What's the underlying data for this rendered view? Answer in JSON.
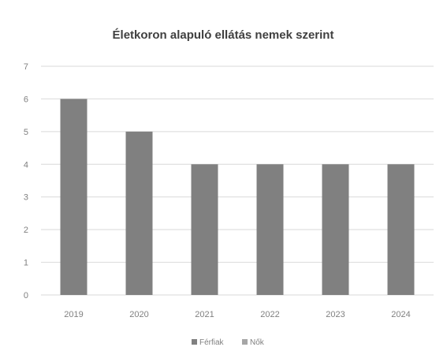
{
  "chart_data": {
    "type": "bar",
    "title": "Életkoron alapuló ellátás nemek szerint",
    "xlabel": "",
    "ylabel": "",
    "categories": [
      "2019",
      "2020",
      "2021",
      "2022",
      "2023",
      "2024"
    ],
    "series": [
      {
        "name": "Férfiak",
        "values": [
          6,
          5,
          4,
          4,
          4,
          4
        ],
        "color": "#808080"
      },
      {
        "name": "Nők",
        "values": [
          0,
          0,
          0,
          0,
          0,
          0
        ],
        "color": "#a6a6a6"
      }
    ],
    "ylim": [
      0,
      7
    ],
    "yticks": [
      "0",
      "1",
      "2",
      "3",
      "4",
      "5",
      "6",
      "7"
    ],
    "grid": true,
    "legend_position": "bottom",
    "colors": {
      "gridline": "#d9d9d9",
      "text": "#808080",
      "title": "#404040"
    }
  }
}
